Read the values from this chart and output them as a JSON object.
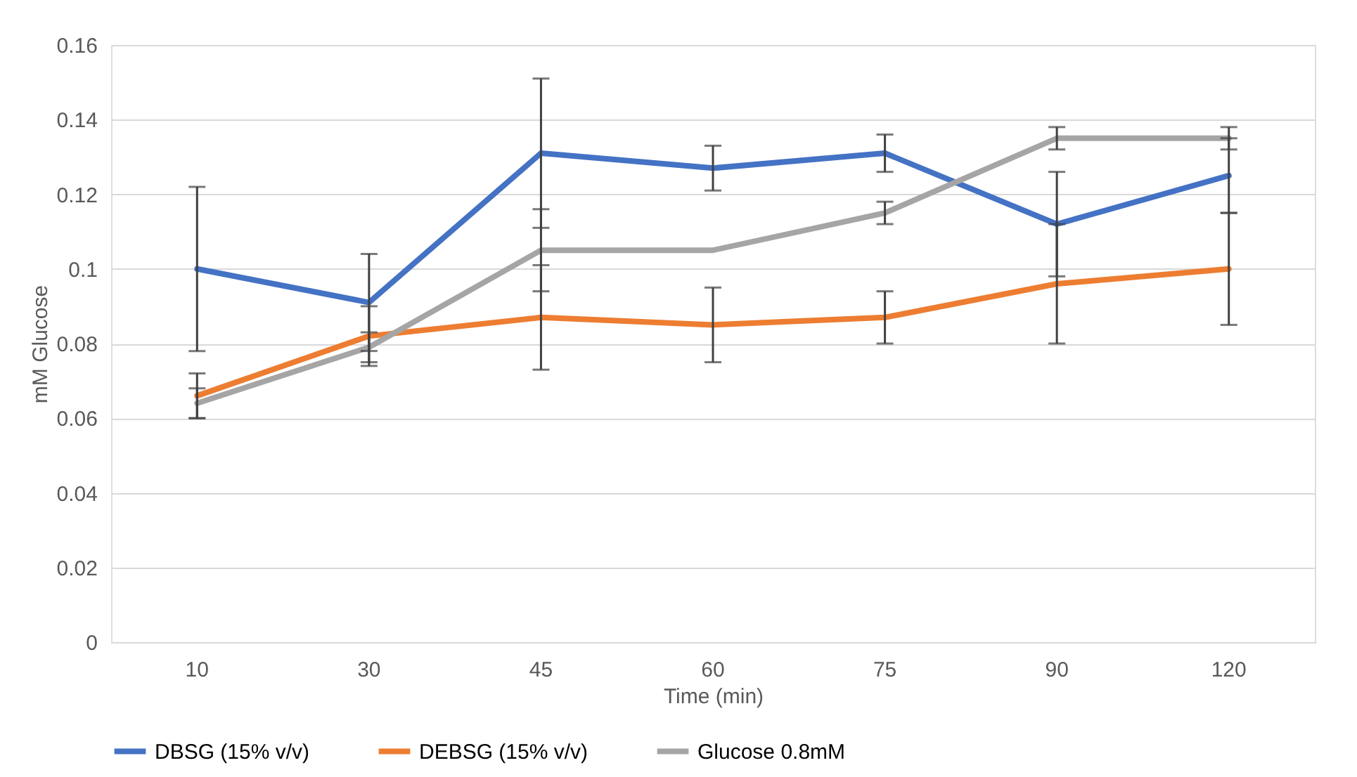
{
  "chart_data": {
    "type": "line",
    "xlabel": "Time (min)",
    "ylabel": "mM Glucose",
    "categories": [
      "10",
      "30",
      "45",
      "60",
      "75",
      "90",
      "120"
    ],
    "series": [
      {
        "name": "DBSG (15% v/v)",
        "color": "#4472c4",
        "values": [
          0.1,
          0.091,
          0.131,
          0.127,
          0.131,
          0.112,
          0.125
        ],
        "errors": [
          0.022,
          0.013,
          0.02,
          0.006,
          0.005,
          0.014,
          0.01
        ]
      },
      {
        "name": "DEBSG (15% v/v)",
        "color": "#ed7d31",
        "values": [
          0.066,
          0.082,
          0.087,
          0.085,
          0.087,
          0.096,
          0.1
        ],
        "errors": [
          0.006,
          0.008,
          0.014,
          0.01,
          0.007,
          0.016,
          0.015
        ]
      },
      {
        "name": "Glucose 0.8mM",
        "color": "#a5a5a5",
        "values": [
          0.064,
          0.079,
          0.105,
          0.105,
          0.115,
          0.135,
          0.135
        ],
        "errors": [
          0.004,
          0.004,
          0.011,
          null,
          0.003,
          0.003,
          0.003
        ]
      }
    ],
    "ylim": [
      0,
      0.16
    ],
    "yticks": [
      0,
      0.02,
      0.04,
      0.06,
      0.08,
      0.1,
      0.12,
      0.14,
      0.16
    ],
    "grid": "y",
    "legend": "bottom",
    "marker": "none",
    "line_style": "solid"
  }
}
